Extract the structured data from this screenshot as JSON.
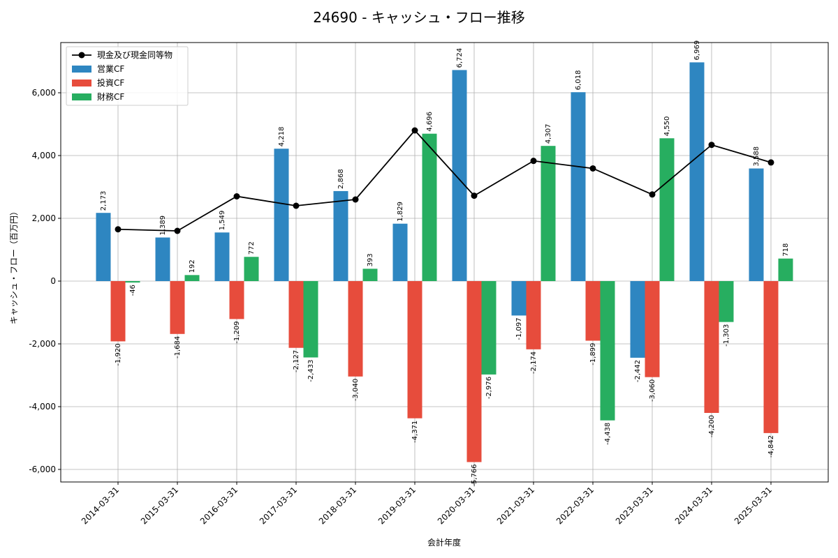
{
  "chart_data": {
    "type": "bar",
    "title": "24690 - キャッシュ・フロー推移",
    "xlabel": "会計年度",
    "ylabel": "キャッシュ・フロー（百万円）",
    "ylim": [
      -6400,
      7600
    ],
    "yticks": [
      -6000,
      -4000,
      -2000,
      0,
      2000,
      4000,
      6000
    ],
    "ytick_labels": [
      "-6,000",
      "-4,000",
      "-2,000",
      "0",
      "2,000",
      "4,000",
      "6,000"
    ],
    "grid": true,
    "legend_position": "top-left",
    "categories": [
      "2014-03-31",
      "2015-03-31",
      "2016-03-31",
      "2017-03-31",
      "2018-03-31",
      "2019-03-31",
      "2020-03-31",
      "2021-03-31",
      "2022-03-31",
      "2023-03-31",
      "2024-03-31",
      "2025-03-31"
    ],
    "series": [
      {
        "name": "営業CF",
        "kind": "bar",
        "color": "#2e86c1",
        "values": [
          2173,
          1389,
          1549,
          4218,
          2868,
          1829,
          6724,
          -1097,
          6018,
          -2442,
          6969,
          3588
        ],
        "labels": [
          "2,173",
          "1,389",
          "1,549",
          "4,218",
          "2,868",
          "1,829",
          "6,724",
          "-1,097",
          "6,018",
          "-2,442",
          "6,969",
          "3,588"
        ]
      },
      {
        "name": "投資CF",
        "kind": "bar",
        "color": "#e74c3c",
        "values": [
          -1920,
          -1684,
          -1209,
          -2127,
          -3040,
          -4371,
          -5766,
          -2174,
          -1899,
          -3060,
          -4200,
          -4842
        ],
        "labels": [
          "-1,920",
          "-1,684",
          "-1,209",
          "-2,127",
          "-3,040",
          "-4,371",
          "-5,766",
          "-2,174",
          "-1,899",
          "-3,060",
          "-4,200",
          "-4,842"
        ]
      },
      {
        "name": "財務CF",
        "kind": "bar",
        "color": "#27ae60",
        "values": [
          -46,
          192,
          772,
          -2433,
          393,
          4696,
          -2976,
          4307,
          -4438,
          4550,
          -1303,
          718
        ],
        "labels": [
          "-46",
          "192",
          "772",
          "-2,433",
          "393",
          "4,696",
          "-2,976",
          "4,307",
          "-4,438",
          "4,550",
          "-1,303",
          "718"
        ]
      },
      {
        "name": "現金及び現金同等物",
        "kind": "line",
        "color": "#000000",
        "values": [
          1650,
          1600,
          2700,
          2400,
          2600,
          4800,
          2720,
          3830,
          3590,
          2760,
          4340,
          3780
        ]
      }
    ]
  }
}
